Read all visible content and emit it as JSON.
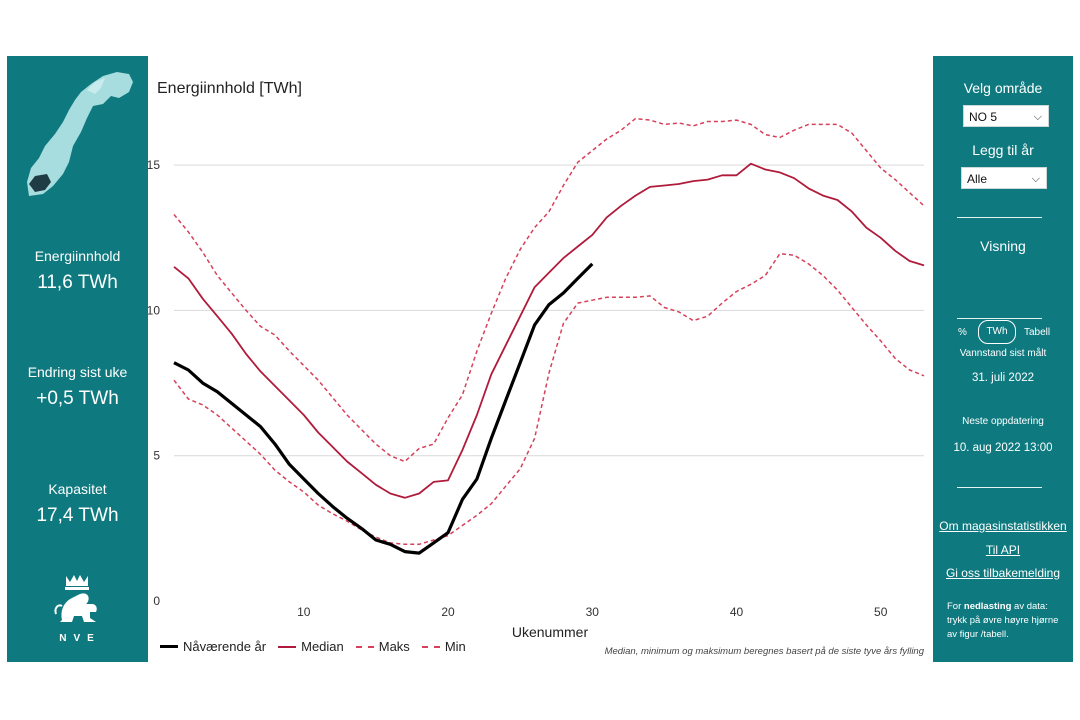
{
  "stats": {
    "energy_label": "Energiinnhold",
    "energy_value": "11,6 TWh",
    "change_label": "Endring sist uke",
    "change_value": "+0,5 TWh",
    "capacity_label": "Kapasitet",
    "capacity_value": "17,4 TWh"
  },
  "logo_text": "NVE",
  "controls": {
    "area_heading": "Velg område",
    "area_selected": "NO 5",
    "year_heading": "Legg til år",
    "year_selected": "Alle",
    "view_heading": "Visning",
    "view_options": [
      "%",
      "TWh",
      "Tabell"
    ],
    "view_selected": "TWh",
    "measured_label": "Vannstand sist målt",
    "measured_date": "31. juli 2022",
    "next_update_label": "Neste oppdatering",
    "next_update_date": "10. aug 2022 13:00",
    "links": [
      "Om magasinstatistikken",
      "Til API",
      "Gi oss tilbakemelding"
    ],
    "download_note_pre": "For ",
    "download_note_bold": "nedlasting",
    "download_note_post": " av data: trykk på øvre høyre hjørne av figur /tabell."
  },
  "colors": {
    "panel": "#0e7a7f",
    "current": "#000000",
    "median": "#b01b3b",
    "band": "#d6405a",
    "grid": "#d9d9d9"
  },
  "chart_data": {
    "type": "line",
    "title": "Energiinnhold [TWh]",
    "xlabel": "Ukenummer",
    "ylabel": "",
    "xlim": [
      1,
      53
    ],
    "ylim": [
      0,
      17
    ],
    "xticks": [
      10,
      20,
      30,
      40,
      50
    ],
    "yticks": [
      0,
      5,
      10,
      15
    ],
    "footnote": "Median, minimum og maksimum beregnes basert på de siste tyve års fylling",
    "series": [
      {
        "name": "Nåværende år",
        "style": "solid-thick",
        "x": [
          1,
          2,
          3,
          4,
          5,
          6,
          7,
          8,
          9,
          10,
          11,
          12,
          13,
          14,
          15,
          16,
          17,
          18,
          19,
          20,
          21,
          22,
          23,
          24,
          25,
          26,
          27,
          28,
          29,
          30
        ],
        "values": [
          8.2,
          7.95,
          7.5,
          7.2,
          6.8,
          6.4,
          6.0,
          5.4,
          4.7,
          4.2,
          3.7,
          3.25,
          2.85,
          2.5,
          2.1,
          1.95,
          1.7,
          1.65,
          2.0,
          2.35,
          3.5,
          4.2,
          5.6,
          6.9,
          8.2,
          9.5,
          10.2,
          10.6,
          11.1,
          11.6
        ]
      },
      {
        "name": "Median",
        "style": "solid",
        "x": [
          1,
          2,
          3,
          4,
          5,
          6,
          7,
          8,
          9,
          10,
          11,
          12,
          13,
          14,
          15,
          16,
          17,
          18,
          19,
          20,
          21,
          22,
          23,
          24,
          25,
          26,
          27,
          28,
          29,
          30,
          31,
          32,
          33,
          34,
          35,
          36,
          37,
          38,
          39,
          40,
          41,
          42,
          43,
          44,
          45,
          46,
          47,
          48,
          49,
          50,
          51,
          52,
          53
        ],
        "values": [
          11.5,
          11.1,
          10.4,
          9.8,
          9.2,
          8.5,
          7.9,
          7.4,
          6.9,
          6.4,
          5.8,
          5.3,
          4.8,
          4.4,
          4.0,
          3.7,
          3.55,
          3.7,
          4.1,
          4.15,
          5.2,
          6.4,
          7.8,
          8.8,
          9.8,
          10.8,
          11.3,
          11.8,
          12.2,
          12.6,
          13.2,
          13.6,
          13.95,
          14.25,
          14.3,
          14.35,
          14.45,
          14.5,
          14.65,
          14.65,
          15.05,
          14.85,
          14.75,
          14.55,
          14.2,
          13.95,
          13.8,
          13.4,
          12.85,
          12.5,
          12.05,
          11.7,
          11.55
        ]
      },
      {
        "name": "Maks",
        "style": "dashed",
        "x": [
          1,
          2,
          3,
          4,
          5,
          6,
          7,
          8,
          9,
          10,
          11,
          12,
          13,
          14,
          15,
          16,
          17,
          18,
          19,
          20,
          21,
          22,
          23,
          24,
          25,
          26,
          27,
          28,
          29,
          30,
          31,
          32,
          33,
          34,
          35,
          36,
          37,
          38,
          39,
          40,
          41,
          42,
          43,
          44,
          45,
          46,
          47,
          48,
          49,
          50,
          51,
          52,
          53
        ],
        "values": [
          13.3,
          12.7,
          12.0,
          11.2,
          10.6,
          10.0,
          9.45,
          9.15,
          8.6,
          8.1,
          7.6,
          7.0,
          6.4,
          5.9,
          5.4,
          5.0,
          4.8,
          5.25,
          5.4,
          6.3,
          7.1,
          8.6,
          9.9,
          11.1,
          12.1,
          12.85,
          13.4,
          14.3,
          15.1,
          15.5,
          15.9,
          16.2,
          16.6,
          16.55,
          16.4,
          16.45,
          16.35,
          16.5,
          16.5,
          16.55,
          16.4,
          16.05,
          15.95,
          16.2,
          16.4,
          16.4,
          16.4,
          16.1,
          15.5,
          14.9,
          14.5,
          14.05,
          13.6
        ]
      },
      {
        "name": "Min",
        "style": "dashed",
        "x": [
          1,
          2,
          3,
          4,
          5,
          6,
          7,
          8,
          9,
          10,
          11,
          12,
          13,
          14,
          15,
          16,
          17,
          18,
          19,
          20,
          21,
          22,
          23,
          24,
          25,
          26,
          27,
          28,
          29,
          30,
          31,
          32,
          33,
          34,
          35,
          36,
          37,
          38,
          39,
          40,
          41,
          42,
          43,
          44,
          45,
          46,
          47,
          48,
          49,
          50,
          51,
          52,
          53
        ],
        "values": [
          7.6,
          6.95,
          6.75,
          6.4,
          5.95,
          5.5,
          5.05,
          4.5,
          4.1,
          3.75,
          3.3,
          3.0,
          2.75,
          2.45,
          2.2,
          2.0,
          1.95,
          1.95,
          2.1,
          2.25,
          2.6,
          2.95,
          3.35,
          3.95,
          4.55,
          5.6,
          7.85,
          9.55,
          10.25,
          10.35,
          10.45,
          10.45,
          10.45,
          10.5,
          10.1,
          9.95,
          9.65,
          9.8,
          10.25,
          10.65,
          10.9,
          11.2,
          11.95,
          11.9,
          11.6,
          11.2,
          10.7,
          10.1,
          9.5,
          8.95,
          8.35,
          7.95,
          7.75
        ]
      }
    ]
  }
}
